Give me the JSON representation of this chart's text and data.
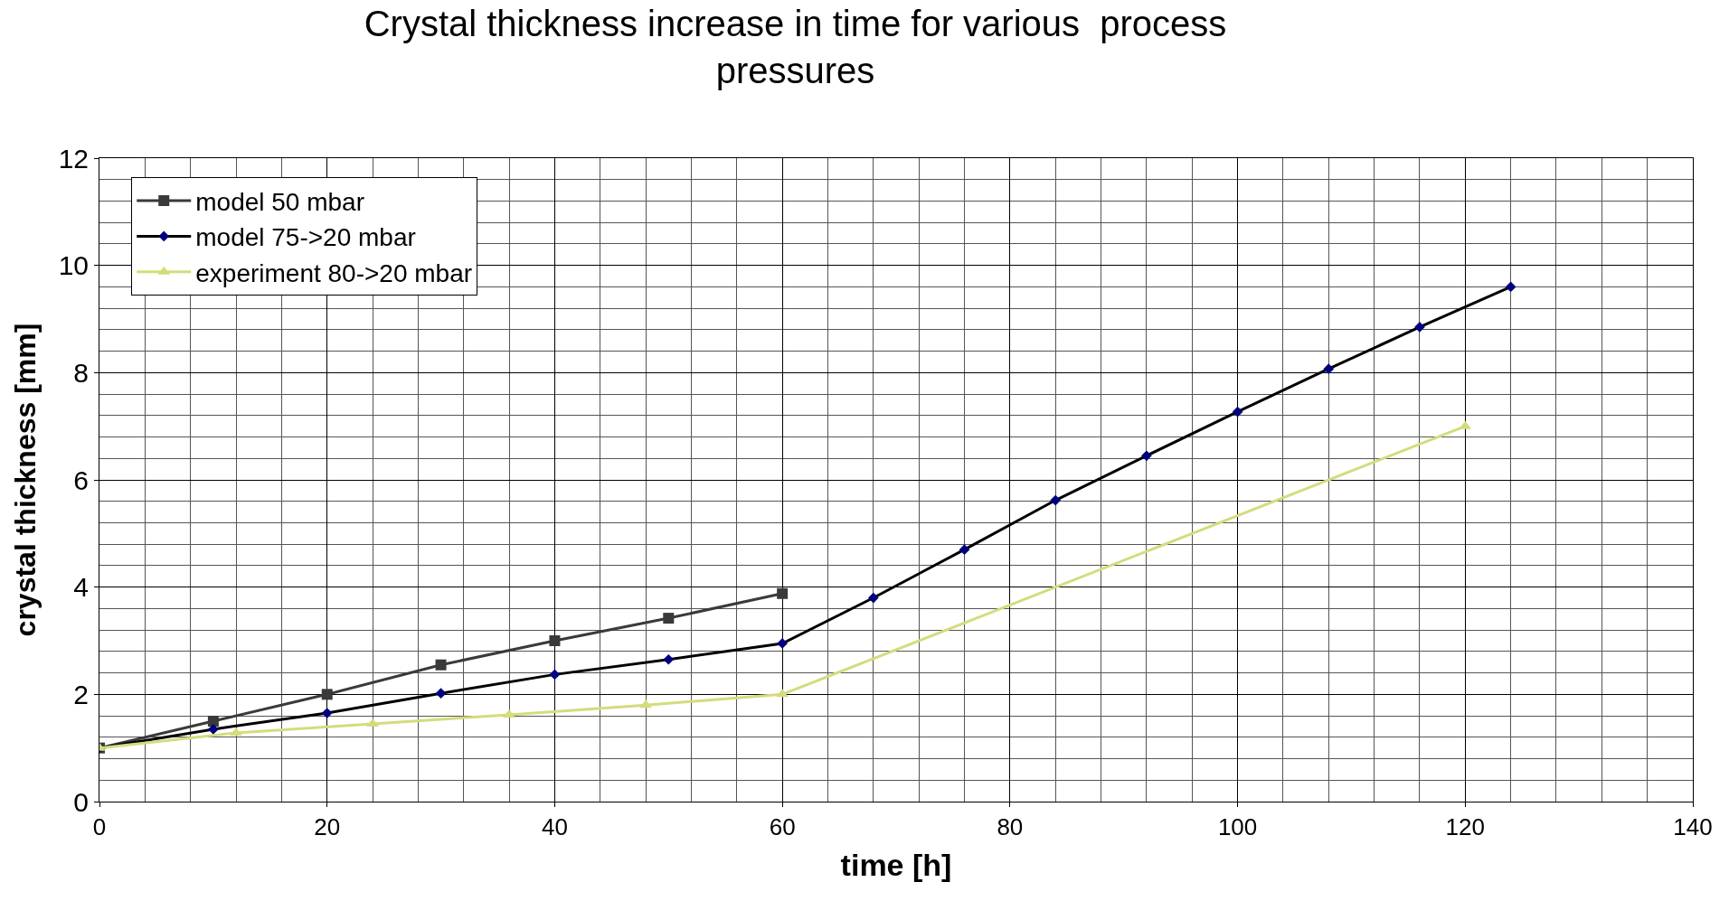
{
  "chart_data": {
    "type": "line",
    "title": "Crystal thickness increase in time for various  process pressures",
    "xlabel": "time [h]",
    "ylabel": "crystal thickness [mm]",
    "xlim": [
      0,
      140
    ],
    "xticks": [
      0,
      20,
      40,
      60,
      80,
      100,
      120,
      140
    ],
    "ylim": [
      0,
      12
    ],
    "yticks": [
      0,
      2,
      4,
      6,
      8,
      10,
      12
    ],
    "grid": true,
    "legend": "top left",
    "series": [
      {
        "name": "model 50 mbar",
        "color": "#3a3a3a",
        "marker": "square",
        "x": [
          0,
          10,
          20,
          30,
          40,
          50,
          60
        ],
        "values": [
          1,
          1.5,
          2.0,
          2.55,
          3.0,
          3.42,
          3.88
        ]
      },
      {
        "name": "model 75->20 mbar",
        "color": "#000000",
        "marker": "diamond",
        "x": [
          0,
          10,
          20,
          30,
          40,
          50,
          60,
          68,
          76,
          84,
          92,
          100,
          108,
          116,
          124
        ],
        "values": [
          1,
          1.35,
          1.65,
          2.02,
          2.37,
          2.65,
          2.95,
          3.8,
          4.7,
          5.62,
          6.45,
          7.27,
          8.07,
          8.85,
          9.6
        ]
      },
      {
        "name": "experiment 80->20 mbar",
        "color": "#d4dc7c",
        "marker": "triangle",
        "x": [
          0,
          12,
          24,
          36,
          48,
          60,
          120
        ],
        "values": [
          1,
          1.28,
          1.45,
          1.62,
          1.8,
          2.0,
          7.0
        ]
      }
    ]
  }
}
